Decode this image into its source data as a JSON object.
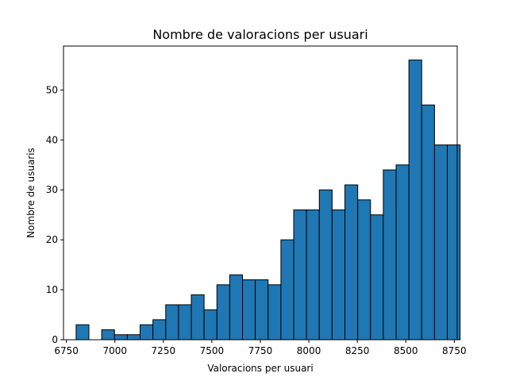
{
  "chart_data": {
    "type": "bar",
    "title": "Nombre de valoracions per usuari",
    "xlabel": "Valoracions per usuari",
    "ylabel": "Nombre de usuaris",
    "xlim": [
      6735,
      8765
    ],
    "ylim": [
      0,
      58.8
    ],
    "xticks": [
      6750,
      7000,
      7250,
      7500,
      7750,
      8000,
      8250,
      8500,
      8750
    ],
    "yticks": [
      0,
      10,
      20,
      30,
      40,
      50
    ],
    "bar_color": "#1f77b4",
    "edge_color": "#000000",
    "grid": false,
    "bins": [
      {
        "x0": 6800,
        "x1": 6866,
        "count": 3
      },
      {
        "x0": 6866,
        "x1": 6932,
        "count": 0
      },
      {
        "x0": 6932,
        "x1": 6998,
        "count": 2
      },
      {
        "x0": 6998,
        "x1": 7064,
        "count": 1
      },
      {
        "x0": 7064,
        "x1": 7130,
        "count": 1
      },
      {
        "x0": 7130,
        "x1": 7196,
        "count": 3
      },
      {
        "x0": 7196,
        "x1": 7262,
        "count": 4
      },
      {
        "x0": 7262,
        "x1": 7328,
        "count": 7
      },
      {
        "x0": 7328,
        "x1": 7394,
        "count": 7
      },
      {
        "x0": 7394,
        "x1": 7460,
        "count": 9
      },
      {
        "x0": 7460,
        "x1": 7526,
        "count": 6
      },
      {
        "x0": 7526,
        "x1": 7592,
        "count": 11
      },
      {
        "x0": 7592,
        "x1": 7658,
        "count": 13
      },
      {
        "x0": 7658,
        "x1": 7724,
        "count": 12
      },
      {
        "x0": 7724,
        "x1": 7790,
        "count": 12
      },
      {
        "x0": 7790,
        "x1": 7856,
        "count": 11
      },
      {
        "x0": 7856,
        "x1": 7922,
        "count": 20
      },
      {
        "x0": 7922,
        "x1": 7988,
        "count": 26
      },
      {
        "x0": 7988,
        "x1": 8054,
        "count": 26
      },
      {
        "x0": 8054,
        "x1": 8120,
        "count": 30
      },
      {
        "x0": 8120,
        "x1": 8186,
        "count": 26
      },
      {
        "x0": 8186,
        "x1": 8252,
        "count": 31
      },
      {
        "x0": 8252,
        "x1": 8318,
        "count": 28
      },
      {
        "x0": 8318,
        "x1": 8384,
        "count": 25
      },
      {
        "x0": 8384,
        "x1": 8450,
        "count": 34
      },
      {
        "x0": 8450,
        "x1": 8516,
        "count": 35
      },
      {
        "x0": 8516,
        "x1": 8582,
        "count": 56
      },
      {
        "x0": 8582,
        "x1": 8648,
        "count": 47
      },
      {
        "x0": 8648,
        "x1": 8714,
        "count": 39
      },
      {
        "x0": 8714,
        "x1": 8780,
        "count": 39
      }
    ]
  }
}
